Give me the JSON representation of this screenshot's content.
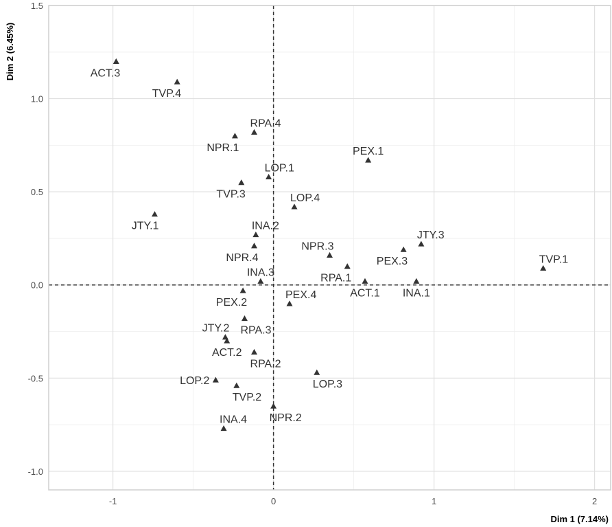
{
  "chart_data": {
    "type": "scatter",
    "xlabel": "Dim 1 (7.14%)",
    "ylabel": "Dim 2 (6.45%)",
    "xlim": [
      -1.4,
      2.1
    ],
    "ylim": [
      -1.1,
      1.5
    ],
    "x_ticks": [
      -1,
      0,
      1,
      2
    ],
    "y_ticks": [
      -1.0,
      -0.5,
      0.0,
      0.5,
      1.0,
      1.5
    ],
    "x_tick_labels": [
      "-1",
      "0",
      "1",
      "2"
    ],
    "y_tick_labels": [
      "-1.0",
      "-0.5",
      "0.0",
      "0.5",
      "1.0",
      "1.5"
    ],
    "grid": true,
    "reference_lines": {
      "x": 0,
      "y": 0,
      "style": "dashed"
    },
    "marker": "triangle",
    "points": [
      {
        "label": "ACT.1",
        "x": 0.57,
        "y": 0.02,
        "label_pos": "below"
      },
      {
        "label": "ACT.2",
        "x": -0.29,
        "y": -0.3,
        "label_pos": "below"
      },
      {
        "label": "ACT.3",
        "x": -0.98,
        "y": 1.2,
        "label_pos": "below-left"
      },
      {
        "label": "INA.1",
        "x": 0.89,
        "y": 0.02,
        "label_pos": "below"
      },
      {
        "label": "INA.2",
        "x": -0.11,
        "y": 0.27,
        "label_pos": "above-right"
      },
      {
        "label": "INA.3",
        "x": -0.08,
        "y": 0.02,
        "label_pos": "above"
      },
      {
        "label": "INA.4",
        "x": -0.31,
        "y": -0.77,
        "label_pos": "above-right"
      },
      {
        "label": "JTY.1",
        "x": -0.74,
        "y": 0.38,
        "label_pos": "below-left"
      },
      {
        "label": "JTY.2",
        "x": -0.3,
        "y": -0.28,
        "label_pos": "above-left"
      },
      {
        "label": "JTY.3",
        "x": 0.92,
        "y": 0.22,
        "label_pos": "above-right"
      },
      {
        "label": "LOP.1",
        "x": -0.03,
        "y": 0.58,
        "label_pos": "above-right"
      },
      {
        "label": "LOP.2",
        "x": -0.36,
        "y": -0.51,
        "label_pos": "left"
      },
      {
        "label": "LOP.3",
        "x": 0.27,
        "y": -0.47,
        "label_pos": "below-right"
      },
      {
        "label": "LOP.4",
        "x": 0.13,
        "y": 0.42,
        "label_pos": "above-right"
      },
      {
        "label": "NPR.1",
        "x": -0.24,
        "y": 0.8,
        "label_pos": "below-left"
      },
      {
        "label": "NPR.2",
        "x": 0.0,
        "y": -0.65,
        "label_pos": "below-right"
      },
      {
        "label": "NPR.3",
        "x": 0.35,
        "y": 0.16,
        "label_pos": "above-left"
      },
      {
        "label": "NPR.4",
        "x": -0.12,
        "y": 0.21,
        "label_pos": "below-left"
      },
      {
        "label": "PEX.1",
        "x": 0.59,
        "y": 0.67,
        "label_pos": "above"
      },
      {
        "label": "PEX.2",
        "x": -0.19,
        "y": -0.03,
        "label_pos": "below-left"
      },
      {
        "label": "PEX.3",
        "x": 0.81,
        "y": 0.19,
        "label_pos": "below-left"
      },
      {
        "label": "PEX.4",
        "x": 0.1,
        "y": -0.1,
        "label_pos": "above-right"
      },
      {
        "label": "RPA.1",
        "x": 0.46,
        "y": 0.1,
        "label_pos": "below-left"
      },
      {
        "label": "RPA.2",
        "x": -0.12,
        "y": -0.36,
        "label_pos": "below-right"
      },
      {
        "label": "RPA.3",
        "x": -0.18,
        "y": -0.18,
        "label_pos": "below-right"
      },
      {
        "label": "RPA.4",
        "x": -0.12,
        "y": 0.82,
        "label_pos": "above-right"
      },
      {
        "label": "TVP.1",
        "x": 1.68,
        "y": 0.09,
        "label_pos": "above-right"
      },
      {
        "label": "TVP.2",
        "x": -0.23,
        "y": -0.54,
        "label_pos": "below-right"
      },
      {
        "label": "TVP.3",
        "x": -0.2,
        "y": 0.55,
        "label_pos": "below-left"
      },
      {
        "label": "TVP.4",
        "x": -0.6,
        "y": 1.09,
        "label_pos": "below-left"
      }
    ]
  }
}
